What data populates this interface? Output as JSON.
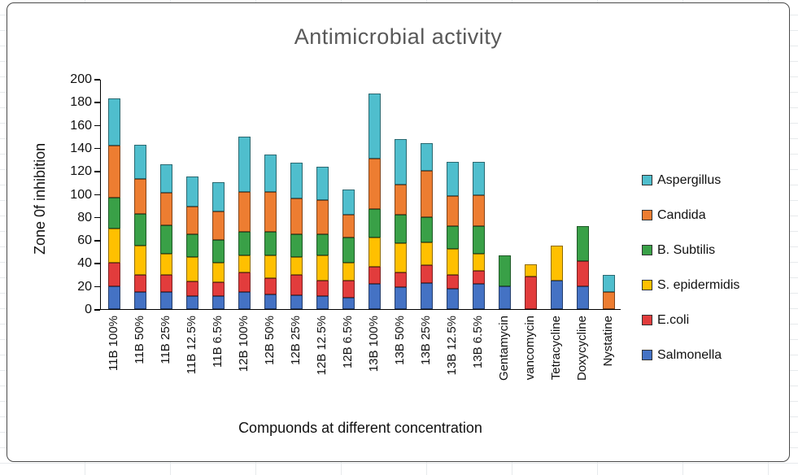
{
  "chart_data": {
    "type": "bar",
    "stacked": true,
    "title": "Antimicrobial activity",
    "xlabel": "Compuonds at different concentration",
    "ylabel": "Zone 0f inhibition",
    "ylim": [
      0,
      200
    ],
    "ytick_step": 20,
    "grid": false,
    "legend_position": "right",
    "categories": [
      "11B 100%",
      "11B 50%",
      "11B 25%",
      "11B 12.5%",
      "11B 6.5%",
      "12B 100%",
      "12B 50%",
      "12B 25%",
      "12B 12.5%",
      "12B 6.5%",
      "13B 100%",
      "13B 50%",
      "13B 25%",
      "13B 12.5%",
      "13B 6.5%",
      "Gentamycin",
      "vancomycin",
      "Tetracycline",
      "Doxycycline",
      "Nystatine"
    ],
    "series": [
      {
        "name": "Salmonella",
        "color": "#4472C4",
        "values": [
          20,
          15,
          15,
          11,
          11,
          15,
          13,
          12,
          11,
          10,
          22,
          19,
          23,
          18,
          22,
          20,
          0,
          25,
          20,
          0
        ]
      },
      {
        "name": "E.coli",
        "color": "#E23C3C",
        "values": [
          20,
          15,
          15,
          13,
          12,
          17,
          14,
          18,
          14,
          15,
          15,
          13,
          15,
          12,
          11,
          0,
          28,
          0,
          22,
          0
        ]
      },
      {
        "name": "S. epidermidis",
        "color": "#FFC000",
        "values": [
          30,
          25,
          18,
          21,
          17,
          15,
          20,
          15,
          22,
          15,
          25,
          25,
          20,
          22,
          15,
          0,
          11,
          30,
          0,
          0
        ]
      },
      {
        "name": "B. Subtilis",
        "color": "#39A047",
        "values": [
          27,
          28,
          25,
          20,
          20,
          20,
          20,
          20,
          18,
          22,
          25,
          25,
          22,
          20,
          24,
          27,
          0,
          0,
          30,
          0
        ]
      },
      {
        "name": "Candida",
        "color": "#ED7D31",
        "values": [
          45,
          30,
          28,
          24,
          25,
          35,
          35,
          31,
          30,
          20,
          44,
          26,
          40,
          26,
          27,
          0,
          0,
          0,
          0,
          15
        ]
      },
      {
        "name": "Aspergillus",
        "color": "#4FBECD",
        "values": [
          41,
          30,
          25,
          26,
          25,
          48,
          32,
          31,
          29,
          22,
          56,
          40,
          24,
          30,
          29,
          0,
          0,
          0,
          0,
          15
        ]
      }
    ],
    "legend_order_top_to_bottom": [
      "Aspergillus",
      "Candida",
      "B. Subtilis",
      "S. epidermidis",
      "E.coli",
      "Salmonella"
    ]
  },
  "colors": {
    "title_text": "#595959",
    "axis_text": "#111111",
    "chart_border": "#4a4a4a"
  }
}
